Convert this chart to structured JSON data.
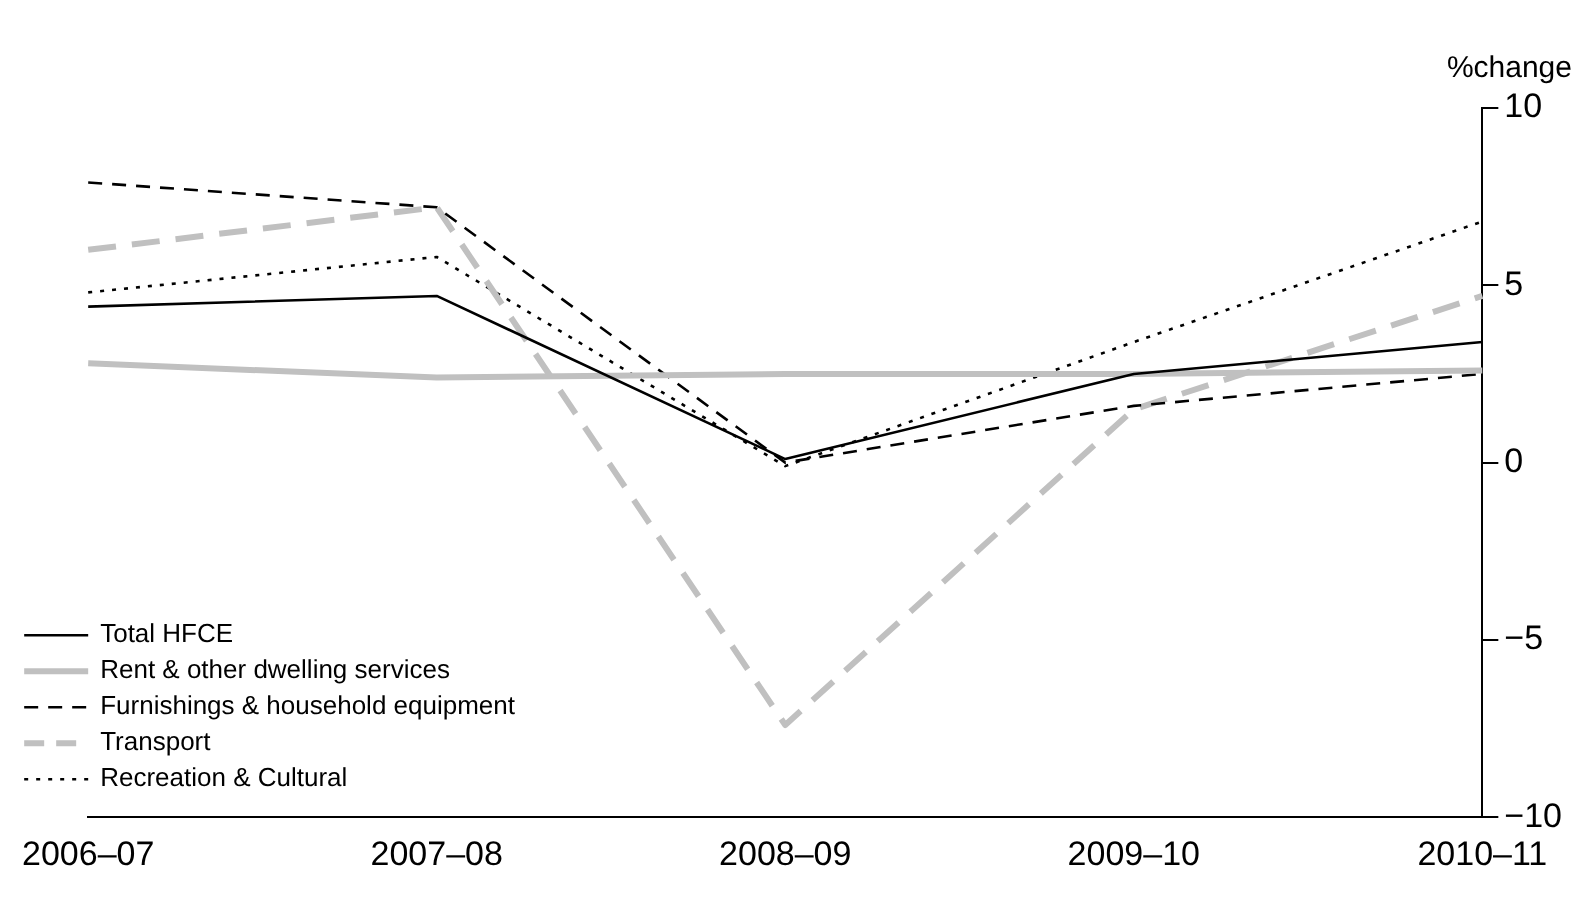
{
  "chart_data": {
    "type": "line",
    "ylabel": "%change",
    "categories": [
      "2006–07",
      "2007–08",
      "2008–09",
      "2009–10",
      "2010–11"
    ],
    "series": [
      {
        "name": "Total HFCE",
        "color": "#000000",
        "line_style": "solid",
        "values": [
          4.4,
          4.7,
          0.1,
          2.5,
          3.4
        ]
      },
      {
        "name": "Rent & other dwelling services",
        "color": "#c0c0c0",
        "line_style": "solid",
        "values": [
          2.8,
          2.4,
          2.5,
          2.5,
          2.6
        ]
      },
      {
        "name": "Furnishings & household equipment",
        "color": "#000000",
        "line_style": "dashed",
        "values": [
          7.9,
          7.2,
          0.0,
          1.6,
          2.5
        ]
      },
      {
        "name": "Transport",
        "color": "#c0c0c0",
        "line_style": "dashed",
        "values": [
          6.0,
          7.2,
          -7.4,
          1.5,
          4.7
        ]
      },
      {
        "name": "Recreation & Cultural",
        "color": "#000000",
        "line_style": "dotted",
        "values": [
          4.8,
          5.8,
          -0.1,
          3.4,
          6.8
        ]
      }
    ],
    "ylim": [
      -10,
      10
    ],
    "yticks": [
      {
        "value": -10,
        "label": "−10"
      },
      {
        "value": -5,
        "label": "−5"
      },
      0,
      5,
      10
    ],
    "legend": "bottom left",
    "grid": false,
    "marker": "none"
  }
}
